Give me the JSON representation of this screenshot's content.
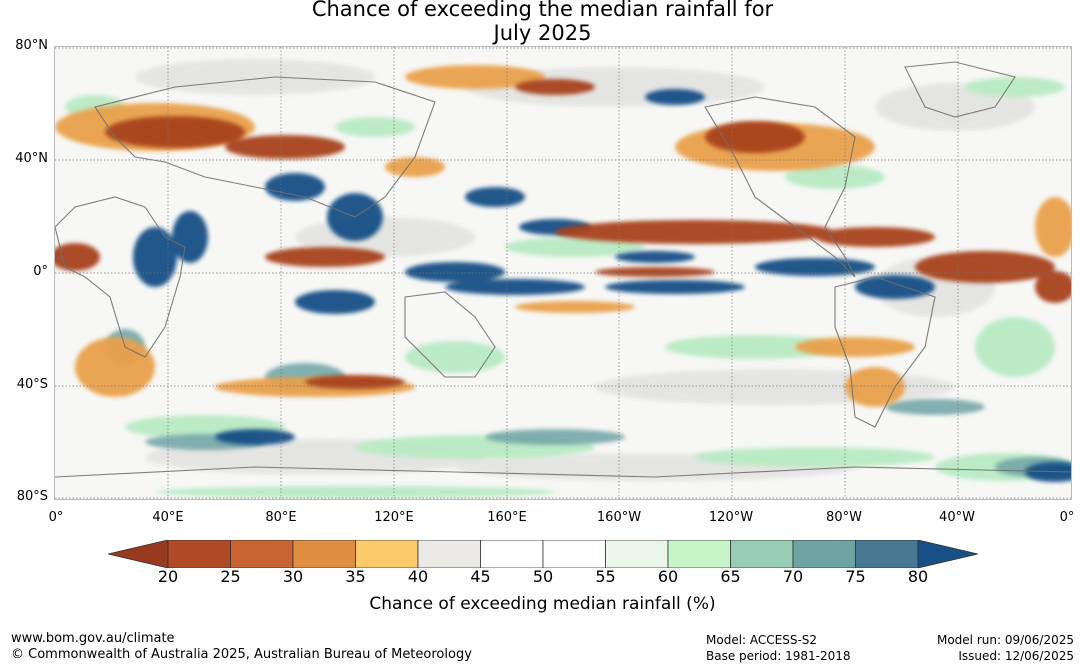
{
  "title": {
    "line1": "Chance of exceeding the median rainfall for",
    "line2": "July 2025"
  },
  "map": {
    "lat_labels": [
      "80°N",
      "40°N",
      "0°",
      "40°S",
      "80°S"
    ],
    "lon_labels": [
      "0°",
      "40°E",
      "80°E",
      "120°E",
      "160°E",
      "160°W",
      "120°W",
      "80°W",
      "40°W",
      "0°"
    ]
  },
  "colorbar": {
    "ticks": [
      "20",
      "25",
      "30",
      "35",
      "40",
      "45",
      "50",
      "55",
      "60",
      "65",
      "70",
      "75",
      "80"
    ],
    "colors": [
      "#983a1f",
      "#b04a27",
      "#c96331",
      "#e08e40",
      "#fbca6a",
      "#ebeae7",
      "#ffffff",
      "#ffffff",
      "#eaf6ea",
      "#c8f5c8",
      "#99ccb5",
      "#6ea3a4",
      "#487791",
      "#174f86"
    ],
    "label": "Chance of exceeding median rainfall (%)"
  },
  "footer": {
    "website": "www.bom.gov.au/climate",
    "copyright": "© Commonwealth of Australia 2025, Australian Bureau of Meteorology",
    "model": "Model: ACCESS-S2",
    "base_period": "Base period: 1981-2018",
    "model_run": "Model run: 09/06/2025",
    "issued": "Issued: 12/06/2025"
  }
}
